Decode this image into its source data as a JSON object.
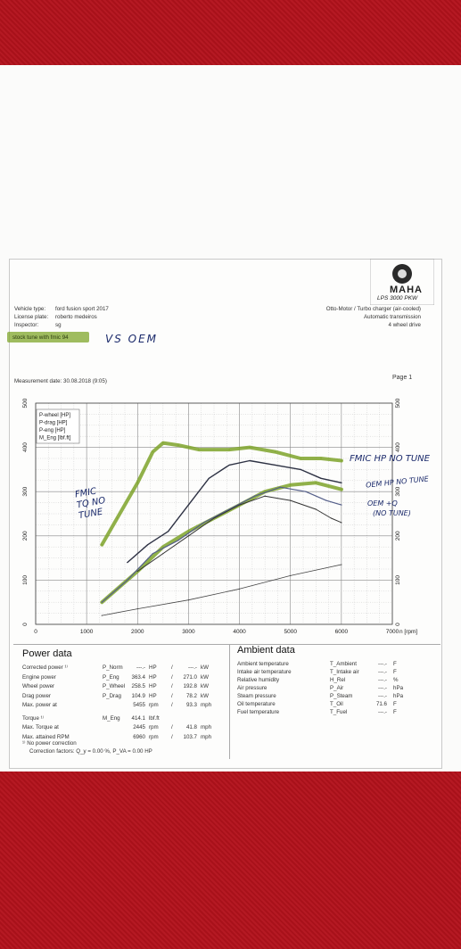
{
  "header": {
    "logo_text": "MAHA",
    "model": "LPS 3000 PKW",
    "vehicle_type_label": "Vehicle type:",
    "vehicle_type": "ford fusion sport 2017",
    "license_label": "License plate:",
    "license": "roberto medeiros",
    "inspector_label": "Inspector:",
    "inspector": "sg",
    "engine_type": "Otto-Motor / Turbo charger (air-cooled)",
    "transmission": "Automatic transmission",
    "drive": "4 wheel drive",
    "highlight_note": "stock tune with fmic 94",
    "hand_note": "VS OEM",
    "measurement_date": "Measurement date: 30.08.2018 (9:05)",
    "page": "Page 1"
  },
  "chart_data": {
    "type": "line",
    "xlabel": "n [rpm]",
    "xlim": [
      0,
      7000
    ],
    "ylim_left": [
      0,
      500
    ],
    "ylim_right": [
      0,
      500
    ],
    "x_ticks": [
      "0",
      "1000",
      "2000",
      "3000",
      "4000",
      "5000",
      "6000",
      "7000"
    ],
    "y_ticks_left": [
      "0",
      "100",
      "200",
      "300",
      "400",
      "500"
    ],
    "y_ticks_right": [
      "0",
      "100",
      "200",
      "300",
      "400",
      "500"
    ],
    "legend": [
      "P-wheel [HP]",
      "P-drag [HP]",
      "P-eng [HP]",
      "M_Eng [lbf.ft]"
    ],
    "series": [
      {
        "color": "#7ea32a",
        "width": 4,
        "x": [
          1300,
          1600,
          2000,
          2300,
          2500,
          2800,
          3200,
          3800,
          4200,
          4700,
          5200,
          5600,
          6000
        ],
        "y": [
          180,
          240,
          320,
          390,
          410,
          405,
          395,
          395,
          400,
          390,
          375,
          375,
          370
        ]
      },
      {
        "color": "#7ea32a",
        "width": 4,
        "x": [
          1300,
          1700,
          2000,
          2500,
          3000,
          3500,
          4000,
          4500,
          5000,
          5500,
          6000
        ],
        "y": [
          50,
          90,
          120,
          175,
          210,
          240,
          270,
          300,
          315,
          320,
          305
        ]
      },
      {
        "color": "#2e3244",
        "width": 1.4,
        "x": [
          1800,
          2200,
          2600,
          3000,
          3400,
          3800,
          4200,
          4700,
          5200,
          5600,
          6000
        ],
        "y": [
          140,
          180,
          210,
          270,
          330,
          360,
          370,
          360,
          350,
          330,
          320
        ]
      },
      {
        "color": "#555f8a",
        "width": 1.2,
        "x": [
          1300,
          1800,
          2300,
          2800,
          3300,
          3800,
          4300,
          4800,
          5300,
          5700,
          6000
        ],
        "y": [
          50,
          100,
          160,
          190,
          230,
          260,
          290,
          310,
          300,
          280,
          270
        ]
      },
      {
        "color": "#333",
        "width": 1,
        "x": [
          2000,
          2500,
          3000,
          3500,
          4000,
          4500,
          5000,
          5500,
          5800,
          6000
        ],
        "y": [
          120,
          160,
          200,
          240,
          270,
          290,
          280,
          260,
          240,
          230
        ]
      },
      {
        "color": "#444",
        "width": 0.8,
        "x": [
          1300,
          2000,
          3000,
          4000,
          5000,
          6000
        ],
        "y": [
          20,
          35,
          55,
          80,
          110,
          135
        ]
      }
    ]
  },
  "hand_annotations": {
    "fmic_hp": "FMIC HP NO TUNE",
    "oem_hp": "OEM HP NO TUNE",
    "oem_tq": "OEM +Q",
    "no_tune": "(NO TUNE)",
    "fmic_tq": "FMIC TQ NO TUNE"
  },
  "power_data": {
    "title": "Power data",
    "rows": [
      {
        "label": "Corrected power ¹⁾",
        "sym": "P_Norm",
        "v1": "---.-",
        "u1": "HP",
        "v2": "---.-",
        "u2": "kW"
      },
      {
        "label": "Engine power",
        "sym": "P_Eng",
        "v1": "363.4",
        "u1": "HP",
        "v2": "271.0",
        "u2": "kW"
      },
      {
        "label": "Wheel power",
        "sym": "P_Wheel",
        "v1": "258.5",
        "u1": "HP",
        "v2": "192.8",
        "u2": "kW"
      },
      {
        "label": "Drag power",
        "sym": "P_Drag",
        "v1": "104.9",
        "u1": "HP",
        "v2": "78.2",
        "u2": "kW"
      },
      {
        "label": "Max. power at",
        "sym": "",
        "v1": "5455",
        "u1": "rpm",
        "v2": "93.3",
        "u2": "mph"
      },
      {
        "label": "Torque ¹⁾",
        "sym": "M_Eng",
        "v1": "414.1",
        "u1": "lbf.ft",
        "v2": "",
        "u2": ""
      },
      {
        "label": "Max. Torque at",
        "sym": "",
        "v1": "2445",
        "u1": "rpm",
        "v2": "41.8",
        "u2": "mph"
      },
      {
        "label": "Max. attained RPM",
        "sym": "",
        "v1": "6960",
        "u1": "rpm",
        "v2": "103.7",
        "u2": "mph"
      }
    ],
    "footnote1": "¹⁾ No power correction",
    "footnote2": "Correction factors: Q_y = 0.00 %, P_VA = 0.00 HP"
  },
  "ambient_data": {
    "title": "Ambient data",
    "rows": [
      {
        "label": "Ambient temperature",
        "sym": "T_Ambient",
        "v": "---.-",
        "u": "F"
      },
      {
        "label": "Intake air temperature",
        "sym": "T_Intake air",
        "v": "---.-",
        "u": "F"
      },
      {
        "label": "Relative humidity",
        "sym": "H_Rel",
        "v": "---.-",
        "u": "%"
      },
      {
        "label": "Air pressure",
        "sym": "P_Air",
        "v": "---.-",
        "u": "hPa"
      },
      {
        "label": "Steam pressure",
        "sym": "P_Steam",
        "v": "---.-",
        "u": "hPa"
      },
      {
        "label": "Oil temperature",
        "sym": "T_Oil",
        "v": "71.6",
        "u": "F"
      },
      {
        "label": "Fuel temperature",
        "sym": "T_Fuel",
        "v": "---.-",
        "u": "F"
      }
    ]
  }
}
